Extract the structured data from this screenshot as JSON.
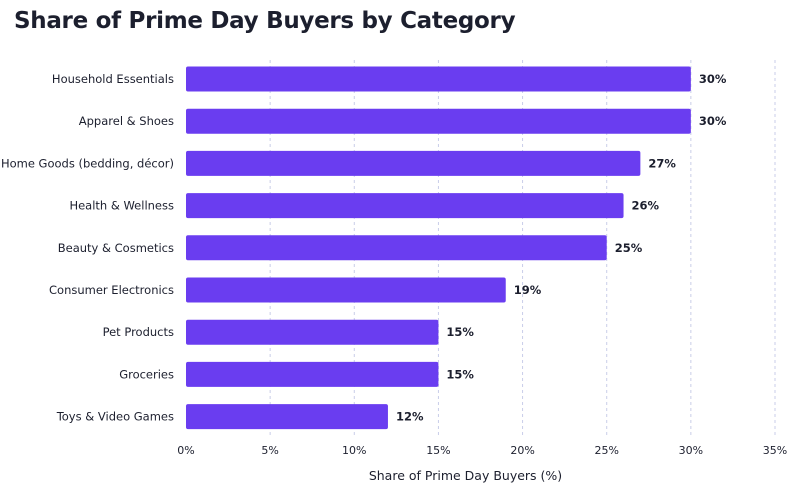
{
  "chart_data": {
    "type": "bar",
    "orientation": "horizontal",
    "title": "Share of Prime Day Buyers by Category",
    "xlabel": "Share of Prime Day Buyers (%)",
    "ylabel": "",
    "categories": [
      "Household Essentials",
      "Apparel & Shoes",
      "Home Goods (bedding, décor)",
      "Health & Wellness",
      "Beauty & Cosmetics",
      "Consumer Electronics",
      "Pet Products",
      "Groceries",
      "Toys & Video Games"
    ],
    "values": [
      30,
      30,
      27,
      26,
      25,
      19,
      15,
      15,
      12
    ],
    "value_labels": [
      "30%",
      "30%",
      "27%",
      "26%",
      "25%",
      "19%",
      "15%",
      "15%",
      "12%"
    ],
    "xlim": [
      0,
      35
    ],
    "x_ticks": [
      0,
      5,
      10,
      15,
      20,
      25,
      30,
      35
    ],
    "x_tick_labels": [
      "0%",
      "5%",
      "10%",
      "15%",
      "20%",
      "25%",
      "30%",
      "35%"
    ],
    "grid": "vertical dashed",
    "legend": "none",
    "bar_color": "#6a3df0",
    "grid_color": "#c9cde8",
    "text_color": "#1c1f2e"
  }
}
